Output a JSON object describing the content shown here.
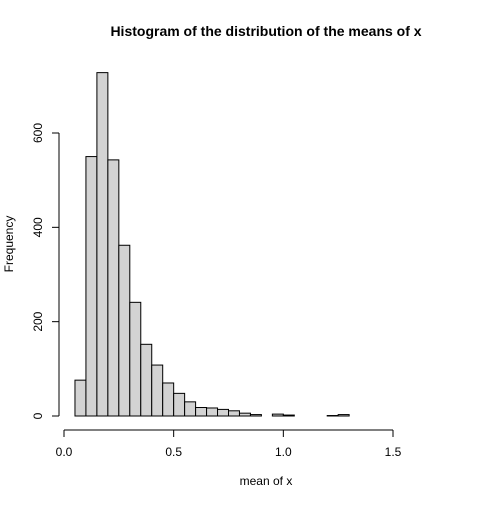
{
  "chart_data": {
    "type": "bar",
    "title": "Histogram of the distribution of the means of x",
    "xlabel": "mean of x",
    "ylabel": "Frequency",
    "bin_width": 0.05,
    "bin_start": 0.05,
    "xlim": [
      0,
      1.8
    ],
    "ylim": [
      0,
      740
    ],
    "x_ticks": [
      0,
      0.5,
      1,
      1.5
    ],
    "x_tick_labels": [
      "0.0",
      "0.5",
      "1.0",
      "1.5"
    ],
    "y_ticks": [
      0,
      200,
      400,
      600
    ],
    "y_tick_labels": [
      "0",
      "200",
      "400",
      "600"
    ],
    "values": [
      76,
      550,
      728,
      543,
      362,
      241,
      152,
      108,
      70,
      48,
      30,
      18,
      17,
      14,
      11,
      6,
      3,
      0,
      4,
      2,
      0,
      0,
      0,
      1,
      3,
      0,
      0,
      0,
      0,
      0,
      0,
      0,
      0,
      0,
      0,
      0
    ],
    "bar_fill": "#d3d3d3",
    "bar_stroke": "#000000",
    "grid": false
  }
}
